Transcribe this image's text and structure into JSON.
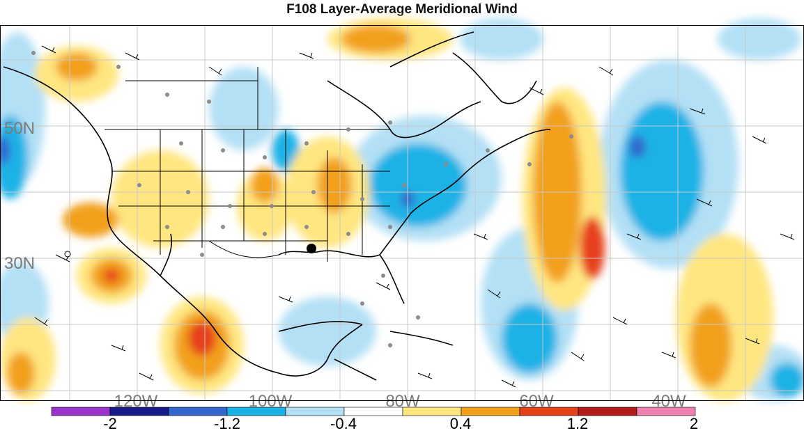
{
  "title": "F108 Layer-Average Meridional Wind",
  "latitude_labels": [
    "50N",
    "30N"
  ],
  "longitude_labels": [
    "120W",
    "100W",
    "80W",
    "60W",
    "40W"
  ],
  "colorbar": {
    "labels": [
      "-2",
      "-1.2",
      "-0.4",
      "0.4",
      "1.2",
      "2"
    ],
    "colors": [
      "#9933cc",
      "#1a1a8c",
      "#3366cc",
      "#1ab2e6",
      "#b3e0f5",
      "#ffffff",
      "#ffe680",
      "#f2a01a",
      "#e6401a",
      "#b31a1a",
      "#f080b0"
    ]
  },
  "marker_colors": {
    "station_dot": "#8c8c8c",
    "highlight_dot": "#000000"
  }
}
